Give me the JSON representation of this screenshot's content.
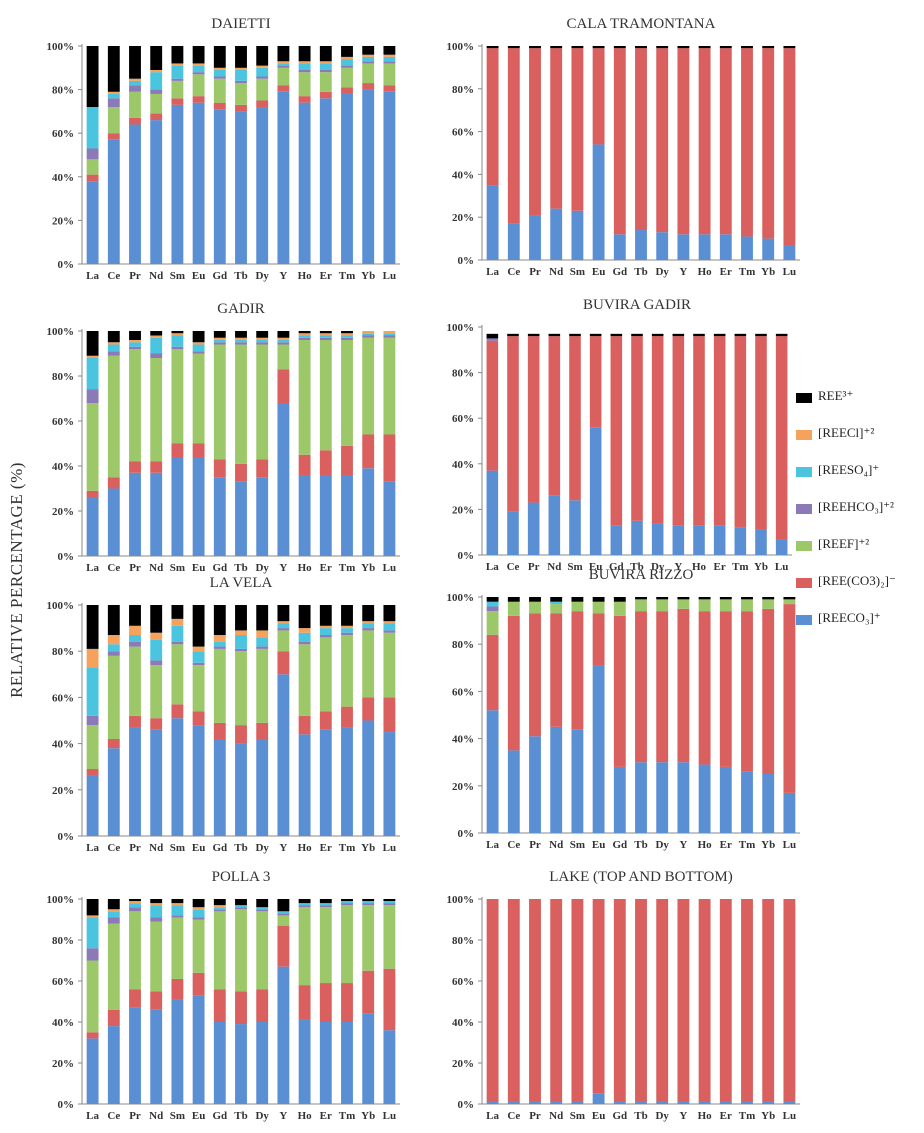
{
  "figure": {
    "ylabel": "RELATIVE PERCENTAGE (%)"
  },
  "legend": [
    {
      "label": "REE³⁺",
      "color": "#000000"
    },
    {
      "label": "[REECl]⁺²",
      "color": "#f5a35c"
    },
    {
      "label": "[REESO₄]⁺",
      "color": "#4bc4e0"
    },
    {
      "label": "[REEHCO₃]⁺²",
      "color": "#8b79b8"
    },
    {
      "label": "[REEF]⁺²",
      "color": "#9cc86a"
    },
    {
      "label": "[REE(CO3)₂]⁻",
      "color": "#d9605f"
    },
    {
      "label": "[REECO₃]⁺",
      "color": "#5b8fd4"
    }
  ],
  "chart_data": [
    {
      "type": "bar",
      "stacked": true,
      "title": "DAIETTI",
      "categories": [
        "La",
        "Ce",
        "Pr",
        "Nd",
        "Sm",
        "Eu",
        "Gd",
        "Tb",
        "Dy",
        "Y",
        "Ho",
        "Er",
        "Tm",
        "Yb",
        "Lu"
      ],
      "yticks": [
        "0%",
        "20%",
        "40%",
        "60%",
        "80%",
        "100%"
      ],
      "ylim": [
        0,
        100
      ],
      "series": [
        {
          "name": "[REECO₃]⁺",
          "color": "#5b8fd4",
          "values": [
            38,
            57,
            64,
            66,
            73,
            74,
            71,
            70,
            72,
            79,
            74,
            76,
            78,
            80,
            79
          ]
        },
        {
          "name": "[REE(CO3)₂]⁻",
          "color": "#d9605f",
          "values": [
            3,
            3,
            3,
            3,
            3,
            3,
            3,
            3,
            3,
            3,
            3,
            3,
            3,
            3,
            3
          ]
        },
        {
          "name": "[REEF]⁺²",
          "color": "#9cc86a",
          "values": [
            7,
            12,
            12,
            9,
            8,
            10,
            11,
            10,
            10,
            8,
            11,
            9,
            9,
            9,
            10
          ]
        },
        {
          "name": "[REEHCO₃]⁺²",
          "color": "#8b79b8",
          "values": [
            5,
            4,
            3,
            2,
            1,
            1,
            1,
            1,
            1,
            1,
            1,
            1,
            1,
            1,
            1
          ]
        },
        {
          "name": "[REESO₄]⁺",
          "color": "#4bc4e0",
          "values": [
            19,
            2,
            2,
            8,
            6,
            3,
            3,
            5,
            4,
            1,
            3,
            3,
            3,
            2,
            2
          ]
        },
        {
          "name": "[REECl]⁺²",
          "color": "#f5a35c",
          "values": [
            0,
            1,
            1,
            1,
            1,
            1,
            1,
            1,
            1,
            1,
            1,
            1,
            1,
            1,
            1
          ]
        },
        {
          "name": "REE³⁺",
          "color": "#000000",
          "values": [
            28,
            21,
            15,
            11,
            8,
            8,
            10,
            10,
            9,
            7,
            7,
            7,
            5,
            4,
            4
          ]
        }
      ]
    },
    {
      "type": "bar",
      "stacked": true,
      "title": "CALA TRAMONTANA",
      "categories": [
        "La",
        "Ce",
        "Pr",
        "Nd",
        "Sm",
        "Eu",
        "Gd",
        "Tb",
        "Dy",
        "Y",
        "Ho",
        "Er",
        "Tm",
        "Yb",
        "Lu"
      ],
      "yticks": [
        "0%",
        "20%",
        "40%",
        "60%",
        "80%",
        "100%"
      ],
      "ylim": [
        0,
        100
      ],
      "series": [
        {
          "name": "[REECO₃]⁺",
          "color": "#5b8fd4",
          "values": [
            35,
            17,
            21,
            24,
            23,
            54,
            12,
            14,
            13,
            12,
            12,
            12,
            11,
            10,
            7
          ]
        },
        {
          "name": "[REE(CO3)₂]⁻",
          "color": "#d9605f",
          "values": [
            64,
            82,
            78,
            75,
            76,
            45,
            87,
            85,
            86,
            87,
            87,
            87,
            88,
            89,
            92
          ]
        },
        {
          "name": "REE³⁺",
          "color": "#000000",
          "values": [
            1,
            1,
            1,
            1,
            1,
            1,
            1,
            1,
            1,
            1,
            1,
            1,
            1,
            1,
            1
          ]
        }
      ]
    },
    {
      "type": "bar",
      "stacked": true,
      "title": "GADIR",
      "categories": [
        "La",
        "Ce",
        "Pr",
        "Nd",
        "Sm",
        "Eu",
        "Gd",
        "Tb",
        "Dy",
        "Y",
        "Ho",
        "Er",
        "Tm",
        "Yb",
        "Lu"
      ],
      "yticks": [
        "0%",
        "20%",
        "40%",
        "60%",
        "80%",
        "100%"
      ],
      "ylim": [
        0,
        100
      ],
      "series": [
        {
          "name": "[REECO₃]⁺",
          "color": "#5b8fd4",
          "values": [
            26,
            30,
            37,
            37,
            44,
            44,
            35,
            33,
            35,
            68,
            36,
            36,
            36,
            39,
            33
          ]
        },
        {
          "name": "[REE(CO3)₂]⁻",
          "color": "#d9605f",
          "values": [
            3,
            5,
            5,
            5,
            6,
            6,
            8,
            8,
            8,
            15,
            9,
            11,
            13,
            15,
            21
          ]
        },
        {
          "name": "[REEF]⁺²",
          "color": "#9cc86a",
          "values": [
            39,
            54,
            50,
            46,
            42,
            40,
            51,
            53,
            51,
            11,
            51,
            49,
            47,
            43,
            43
          ]
        },
        {
          "name": "[REEHCO₃]⁺²",
          "color": "#8b79b8",
          "values": [
            6,
            2,
            1,
            2,
            1,
            1,
            1,
            1,
            1,
            1,
            1,
            1,
            1,
            1,
            1
          ]
        },
        {
          "name": "[REESO₄]⁺",
          "color": "#4bc4e0",
          "values": [
            14,
            3,
            2,
            7,
            5,
            3,
            1,
            1,
            1,
            1,
            1,
            1,
            1,
            1,
            1
          ]
        },
        {
          "name": "[REECl]⁺²",
          "color": "#f5a35c",
          "values": [
            1,
            1,
            1,
            1,
            1,
            1,
            1,
            1,
            1,
            1,
            1,
            1,
            1,
            1,
            1
          ]
        },
        {
          "name": "REE³⁺",
          "color": "#000000",
          "values": [
            11,
            5,
            4,
            2,
            1,
            5,
            3,
            3,
            3,
            3,
            1,
            1,
            1,
            0,
            0
          ]
        }
      ]
    },
    {
      "type": "bar",
      "stacked": true,
      "title": "BUVIRA GADIR",
      "categories": [
        "La",
        "Ce",
        "Pr",
        "Nd",
        "Sm",
        "Eu",
        "Gd",
        "Tb",
        "Dy",
        "Y",
        "Ho",
        "Er",
        "Tm",
        "Yb",
        "Lu"
      ],
      "yticks": [
        "0%",
        "20%",
        "40%",
        "60%",
        "80%",
        "100%"
      ],
      "ylim": [
        0,
        100
      ],
      "series": [
        {
          "name": "[REECO₃]⁺",
          "color": "#5b8fd4",
          "values": [
            37,
            19,
            23,
            26,
            24,
            56,
            13,
            15,
            14,
            13,
            13,
            13,
            12,
            11,
            7
          ]
        },
        {
          "name": "[REE(CO3)₂]⁻",
          "color": "#d9605f",
          "values": [
            57,
            77,
            73,
            70,
            72,
            40,
            83,
            81,
            82,
            83,
            83,
            83,
            84,
            85,
            89
          ]
        },
        {
          "name": "[REEHCO₃]⁺²",
          "color": "#8b79b8",
          "values": [
            1,
            0,
            0,
            0,
            0,
            0,
            0,
            0,
            0,
            0,
            0,
            0,
            0,
            0,
            0
          ]
        },
        {
          "name": "REE³⁺",
          "color": "#000000",
          "values": [
            2,
            1,
            1,
            1,
            1,
            1,
            1,
            1,
            1,
            1,
            1,
            1,
            1,
            1,
            1
          ]
        }
      ]
    },
    {
      "type": "bar",
      "stacked": true,
      "title": "LA VELA",
      "categories": [
        "La",
        "Ce",
        "Pr",
        "Nd",
        "Sm",
        "Eu",
        "Gd",
        "Tb",
        "Dy",
        "Y",
        "Ho",
        "Er",
        "Tm",
        "Yb",
        "Lu"
      ],
      "yticks": [
        "0%",
        "20%",
        "40%",
        "60%",
        "80%",
        "100%"
      ],
      "ylim": [
        0,
        100
      ],
      "series": [
        {
          "name": "[REECO₃]⁺",
          "color": "#5b8fd4",
          "values": [
            26,
            38,
            47,
            46,
            51,
            48,
            42,
            40,
            42,
            70,
            44,
            46,
            47,
            50,
            45
          ]
        },
        {
          "name": "[REE(CO3)₂]⁻",
          "color": "#d9605f",
          "values": [
            3,
            4,
            5,
            5,
            6,
            6,
            7,
            8,
            7,
            10,
            8,
            8,
            9,
            10,
            15
          ]
        },
        {
          "name": "[REEF]⁺²",
          "color": "#9cc86a",
          "values": [
            19,
            36,
            30,
            23,
            26,
            20,
            32,
            32,
            32,
            9,
            31,
            32,
            31,
            29,
            28
          ]
        },
        {
          "name": "[REEHCO₃]⁺²",
          "color": "#8b79b8",
          "values": [
            4,
            2,
            2,
            2,
            1,
            1,
            1,
            1,
            1,
            1,
            1,
            1,
            1,
            1,
            1
          ]
        },
        {
          "name": "[REESO₄]⁺",
          "color": "#4bc4e0",
          "values": [
            21,
            3,
            3,
            9,
            7,
            5,
            2,
            6,
            4,
            2,
            4,
            3,
            2,
            2,
            3
          ]
        },
        {
          "name": "[REECl]⁺²",
          "color": "#f5a35c",
          "values": [
            8,
            4,
            4,
            3,
            3,
            2,
            3,
            2,
            3,
            1,
            2,
            1,
            1,
            1,
            1
          ]
        },
        {
          "name": "REE³⁺",
          "color": "#000000",
          "values": [
            19,
            13,
            9,
            12,
            6,
            18,
            13,
            11,
            11,
            7,
            10,
            9,
            9,
            7,
            7
          ]
        }
      ]
    },
    {
      "type": "bar",
      "stacked": true,
      "title": "BUVIRA RIZZO",
      "categories": [
        "La",
        "Ce",
        "Pr",
        "Nd",
        "Sm",
        "Eu",
        "Gd",
        "Tb",
        "Dy",
        "Y",
        "Ho",
        "Er",
        "Tm",
        "Yb",
        "Lu"
      ],
      "yticks": [
        "0%",
        "20%",
        "40%",
        "60%",
        "80%",
        "100%"
      ],
      "ylim": [
        0,
        100
      ],
      "series": [
        {
          "name": "[REECO₃]⁺",
          "color": "#5b8fd4",
          "values": [
            52,
            35,
            41,
            45,
            44,
            71,
            28,
            30,
            30,
            30,
            29,
            28,
            26,
            25,
            17
          ]
        },
        {
          "name": "[REE(CO3)₂]⁻",
          "color": "#d9605f",
          "values": [
            32,
            57,
            52,
            48,
            50,
            22,
            64,
            64,
            64,
            65,
            65,
            66,
            68,
            70,
            80
          ]
        },
        {
          "name": "[REEF]⁺²",
          "color": "#9cc86a",
          "values": [
            10,
            6,
            5,
            4,
            4,
            5,
            6,
            5,
            5,
            4,
            5,
            5,
            5,
            4,
            2
          ]
        },
        {
          "name": "[REEHCO₃]⁺²",
          "color": "#8b79b8",
          "values": [
            2,
            0,
            0,
            0,
            0,
            0,
            0,
            0,
            0,
            0,
            0,
            0,
            0,
            0,
            0
          ]
        },
        {
          "name": "[REESO₄]⁺",
          "color": "#4bc4e0",
          "values": [
            2,
            0,
            0,
            1,
            0,
            0,
            0,
            0,
            0,
            0,
            0,
            0,
            0,
            0,
            0
          ]
        },
        {
          "name": "REE³⁺",
          "color": "#000000",
          "values": [
            2,
            2,
            2,
            2,
            2,
            2,
            2,
            1,
            1,
            1,
            1,
            1,
            1,
            1,
            1
          ]
        }
      ]
    },
    {
      "type": "bar",
      "stacked": true,
      "title": "POLLA 3",
      "categories": [
        "La",
        "Ce",
        "Pr",
        "Nd",
        "Sm",
        "Eu",
        "Gd",
        "Tb",
        "Dy",
        "Y",
        "Ho",
        "Er",
        "Tm",
        "Yb",
        "Lu"
      ],
      "yticks": [
        "0%",
        "20%",
        "40%",
        "60%",
        "80%",
        "100%"
      ],
      "ylim": [
        0,
        100
      ],
      "series": [
        {
          "name": "[REECO₃]⁺",
          "color": "#5b8fd4",
          "values": [
            32,
            38,
            47,
            46,
            51,
            53,
            40,
            39,
            40,
            67,
            41,
            40,
            40,
            44,
            36
          ]
        },
        {
          "name": "[REE(CO3)₂]⁻",
          "color": "#d9605f",
          "values": [
            3,
            8,
            9,
            9,
            10,
            11,
            16,
            16,
            16,
            20,
            17,
            19,
            19,
            21,
            30
          ]
        },
        {
          "name": "[REEF]⁺²",
          "color": "#9cc86a",
          "values": [
            35,
            42,
            38,
            34,
            30,
            26,
            38,
            40,
            38,
            5,
            38,
            37,
            38,
            32,
            31
          ]
        },
        {
          "name": "[REEHCO₃]⁺²",
          "color": "#8b79b8",
          "values": [
            6,
            3,
            2,
            2,
            1,
            1,
            1,
            1,
            1,
            1,
            1,
            1,
            1,
            1,
            1
          ]
        },
        {
          "name": "[REESO₄]⁺",
          "color": "#4bc4e0",
          "values": [
            15,
            3,
            2,
            6,
            5,
            4,
            1,
            1,
            1,
            1,
            1,
            1,
            1,
            1,
            1
          ]
        },
        {
          "name": "[REECl]⁺²",
          "color": "#f5a35c",
          "values": [
            1,
            1,
            1,
            1,
            1,
            1,
            1,
            0,
            0,
            0,
            0,
            0,
            0,
            0,
            0
          ]
        },
        {
          "name": "REE³⁺",
          "color": "#000000",
          "values": [
            8,
            5,
            1,
            2,
            2,
            4,
            3,
            3,
            4,
            6,
            2,
            2,
            1,
            1,
            1
          ]
        }
      ]
    },
    {
      "type": "bar",
      "stacked": true,
      "title": "LAKE (TOP AND BOTTOM)",
      "categories": [
        "La",
        "Ce",
        "Pr",
        "Nd",
        "Sm",
        "Eu",
        "Gd",
        "Tb",
        "Dy",
        "Y",
        "Ho",
        "Er",
        "Tm",
        "Yb",
        "Lu"
      ],
      "yticks": [
        "0%",
        "20%",
        "40%",
        "60%",
        "80%",
        "100%"
      ],
      "ylim": [
        0,
        100
      ],
      "series": [
        {
          "name": "[REECO₃]⁺",
          "color": "#5b8fd4",
          "values": [
            1,
            1,
            1,
            1,
            1,
            5,
            1,
            1,
            1,
            1,
            1,
            1,
            1,
            1,
            1
          ]
        },
        {
          "name": "[REE(CO3)₂]⁻",
          "color": "#d9605f",
          "values": [
            99,
            99,
            99,
            99,
            99,
            95,
            99,
            99,
            99,
            99,
            99,
            99,
            99,
            99,
            99
          ]
        }
      ]
    }
  ]
}
